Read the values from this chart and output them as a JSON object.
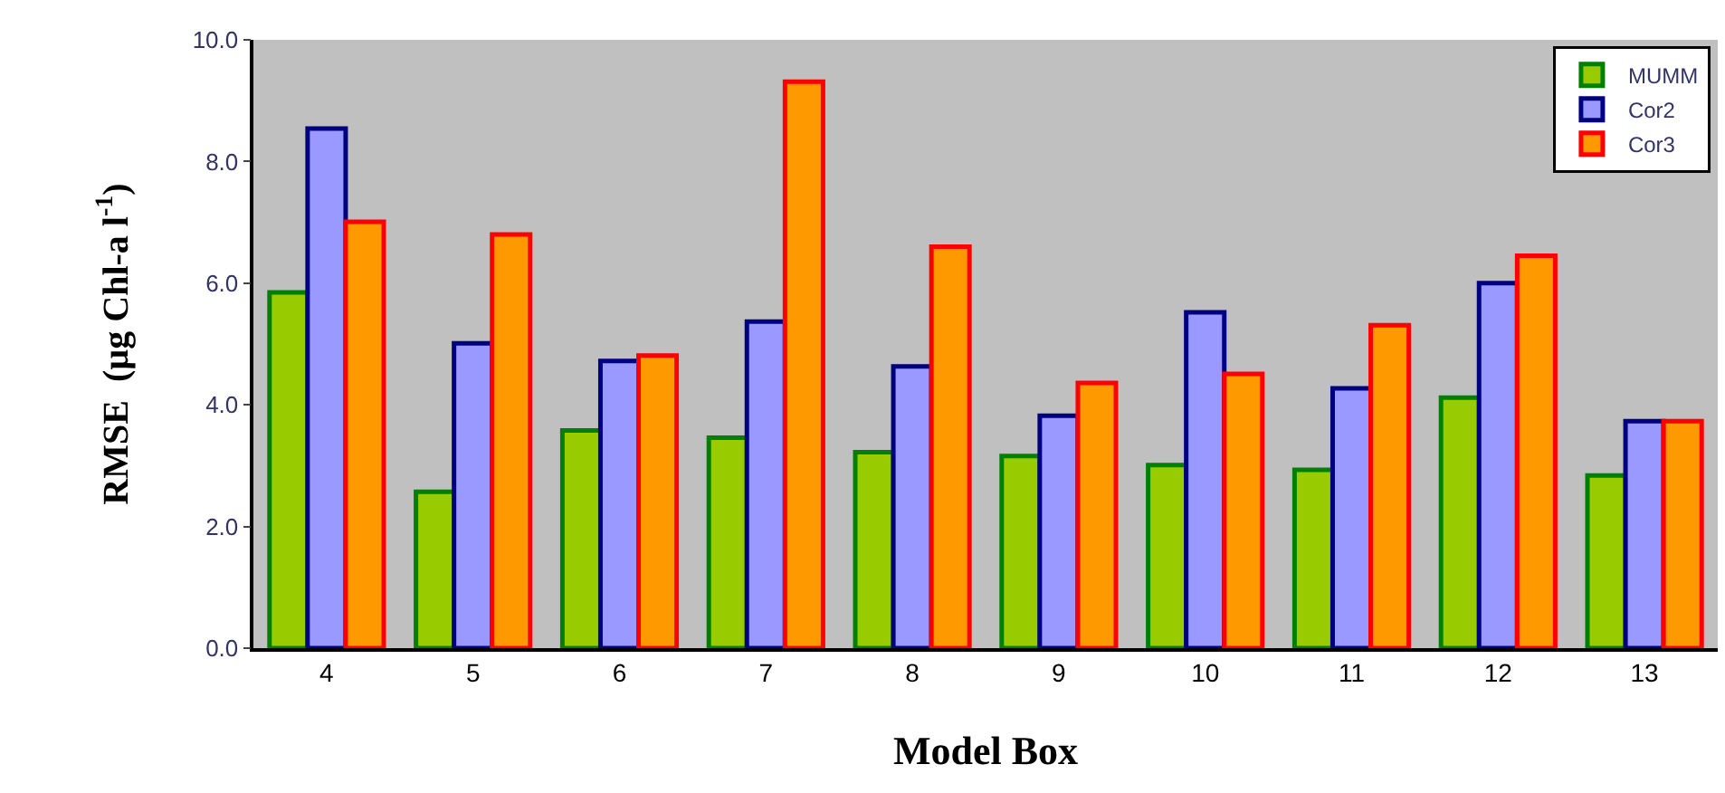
{
  "chart_data": {
    "type": "bar",
    "xlabel": "Model Box",
    "ylabel": "RMSE  (µg Chl-a l$^{-1}$)",
    "categories": [
      "4",
      "5",
      "6",
      "7",
      "8",
      "9",
      "10",
      "11",
      "12",
      "13"
    ],
    "series": [
      {
        "name": "MUMM",
        "color": "#99cc00",
        "values": [
          5.85,
          2.57,
          3.58,
          3.46,
          3.22,
          3.16,
          3.01,
          2.93,
          4.12,
          2.84
        ]
      },
      {
        "name": "Cor2",
        "color": "#9999ff",
        "values": [
          8.54,
          5.01,
          4.72,
          5.37,
          4.63,
          3.82,
          5.52,
          4.27,
          6.0,
          3.73
        ]
      },
      {
        "name": "Cor3",
        "color": "#ff9900",
        "values": [
          7.01,
          6.8,
          4.81,
          9.31,
          6.6,
          4.36,
          4.51,
          5.31,
          6.45,
          3.73
        ]
      }
    ],
    "ylim": [
      0,
      10
    ],
    "yticks": [
      {
        "value": 0,
        "label": "0.0"
      },
      {
        "value": 2,
        "label": "2.0"
      },
      {
        "value": 4,
        "label": "4.0"
      },
      {
        "value": 6,
        "label": "6.0"
      },
      {
        "value": 8,
        "label": "8.0"
      },
      {
        "value": 10,
        "label": "10.0"
      }
    ],
    "grid": false,
    "legend": "top right"
  }
}
